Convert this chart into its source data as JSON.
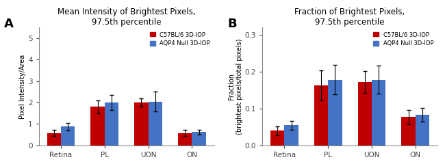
{
  "panel_A": {
    "title": "Mean Intensity of Brightest Pixels,\n97.5th percentile",
    "ylabel": "Pixel Intensity/Area",
    "categories": [
      "Retina",
      "PL",
      "UON",
      "ON"
    ],
    "red_values": [
      0.58,
      1.8,
      2.0,
      0.58
    ],
    "blue_values": [
      0.88,
      2.0,
      2.05,
      0.62
    ],
    "red_errors": [
      0.15,
      0.3,
      0.2,
      0.15
    ],
    "blue_errors": [
      0.18,
      0.35,
      0.45,
      0.1
    ],
    "ylim": [
      0,
      5.5
    ],
    "yticks": [
      0,
      1,
      2,
      3,
      4,
      5
    ]
  },
  "panel_B": {
    "title": "Fraction of Brightest Pixels,\n97.5th percentile",
    "ylabel": "Fraction\n(brightest pixels/total pixels)",
    "categories": [
      "Retina",
      "PL",
      "UON",
      "ON"
    ],
    "red_values": [
      0.04,
      0.163,
      0.172,
      0.077
    ],
    "blue_values": [
      0.055,
      0.178,
      0.178,
      0.083
    ],
    "red_errors": [
      0.012,
      0.04,
      0.03,
      0.02
    ],
    "blue_errors": [
      0.012,
      0.04,
      0.038,
      0.018
    ],
    "ylim": [
      0,
      0.32
    ],
    "yticks": [
      0.0,
      0.1,
      0.2,
      0.3
    ]
  },
  "red_color": "#c00000",
  "blue_color": "#4472c4",
  "legend_labels": [
    "C57BL/6 3D-IOP",
    "AQP4 Null 3D-IOP"
  ],
  "bar_width": 0.32,
  "label_A": "A",
  "label_B": "B",
  "background_color": "#ffffff"
}
